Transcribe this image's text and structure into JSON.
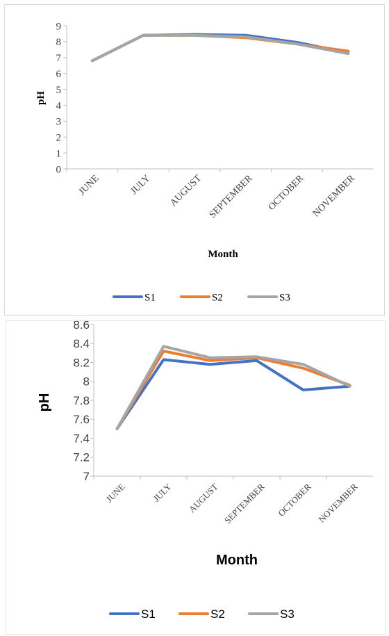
{
  "chart_data": [
    {
      "type": "line",
      "categories": [
        "JUNE",
        "JULY",
        "AUGUST",
        "SEPTEMBER",
        "OCTOBER",
        "NOVEMBER"
      ],
      "series": [
        {
          "name": "S1",
          "color": "#4472c4",
          "values": [
            6.8,
            8.4,
            8.45,
            8.4,
            7.95,
            7.3
          ]
        },
        {
          "name": "S2",
          "color": "#ed7d31",
          "values": [
            6.8,
            8.4,
            8.4,
            8.25,
            7.85,
            7.4
          ]
        },
        {
          "name": "S3",
          "color": "#a5a5a5",
          "values": [
            6.8,
            8.4,
            8.4,
            8.3,
            7.85,
            7.25
          ]
        }
      ],
      "xlabel": "Month",
      "ylabel": "pH",
      "ylim": [
        0,
        9
      ],
      "yticks": [
        "0",
        "1",
        "2",
        "3",
        "4",
        "5",
        "6",
        "7",
        "8",
        "9"
      ],
      "grid": false,
      "legend_position": "bottom"
    },
    {
      "type": "line",
      "categories": [
        "JUNE",
        "JULY",
        "AUGUST",
        "SEPTEMBER",
        "OCTOBER",
        "NOVEMBER"
      ],
      "series": [
        {
          "name": "S1",
          "color": "#4472c4",
          "values": [
            7.5,
            8.23,
            8.18,
            8.22,
            7.91,
            7.95
          ]
        },
        {
          "name": "S2",
          "color": "#ed7d31",
          "values": [
            7.5,
            8.32,
            8.22,
            8.25,
            8.14,
            7.96
          ]
        },
        {
          "name": "S3",
          "color": "#a5a5a5",
          "values": [
            7.5,
            8.37,
            8.25,
            8.26,
            8.18,
            7.95
          ]
        }
      ],
      "xlabel": "Month",
      "ylabel": "pH",
      "ylim": [
        7,
        8.6
      ],
      "yticks": [
        "7",
        "7.2",
        "7.4",
        "7.6",
        "7.8",
        "8",
        "8.2",
        "8.4",
        "8.6"
      ],
      "grid": false,
      "legend_position": "bottom"
    }
  ]
}
